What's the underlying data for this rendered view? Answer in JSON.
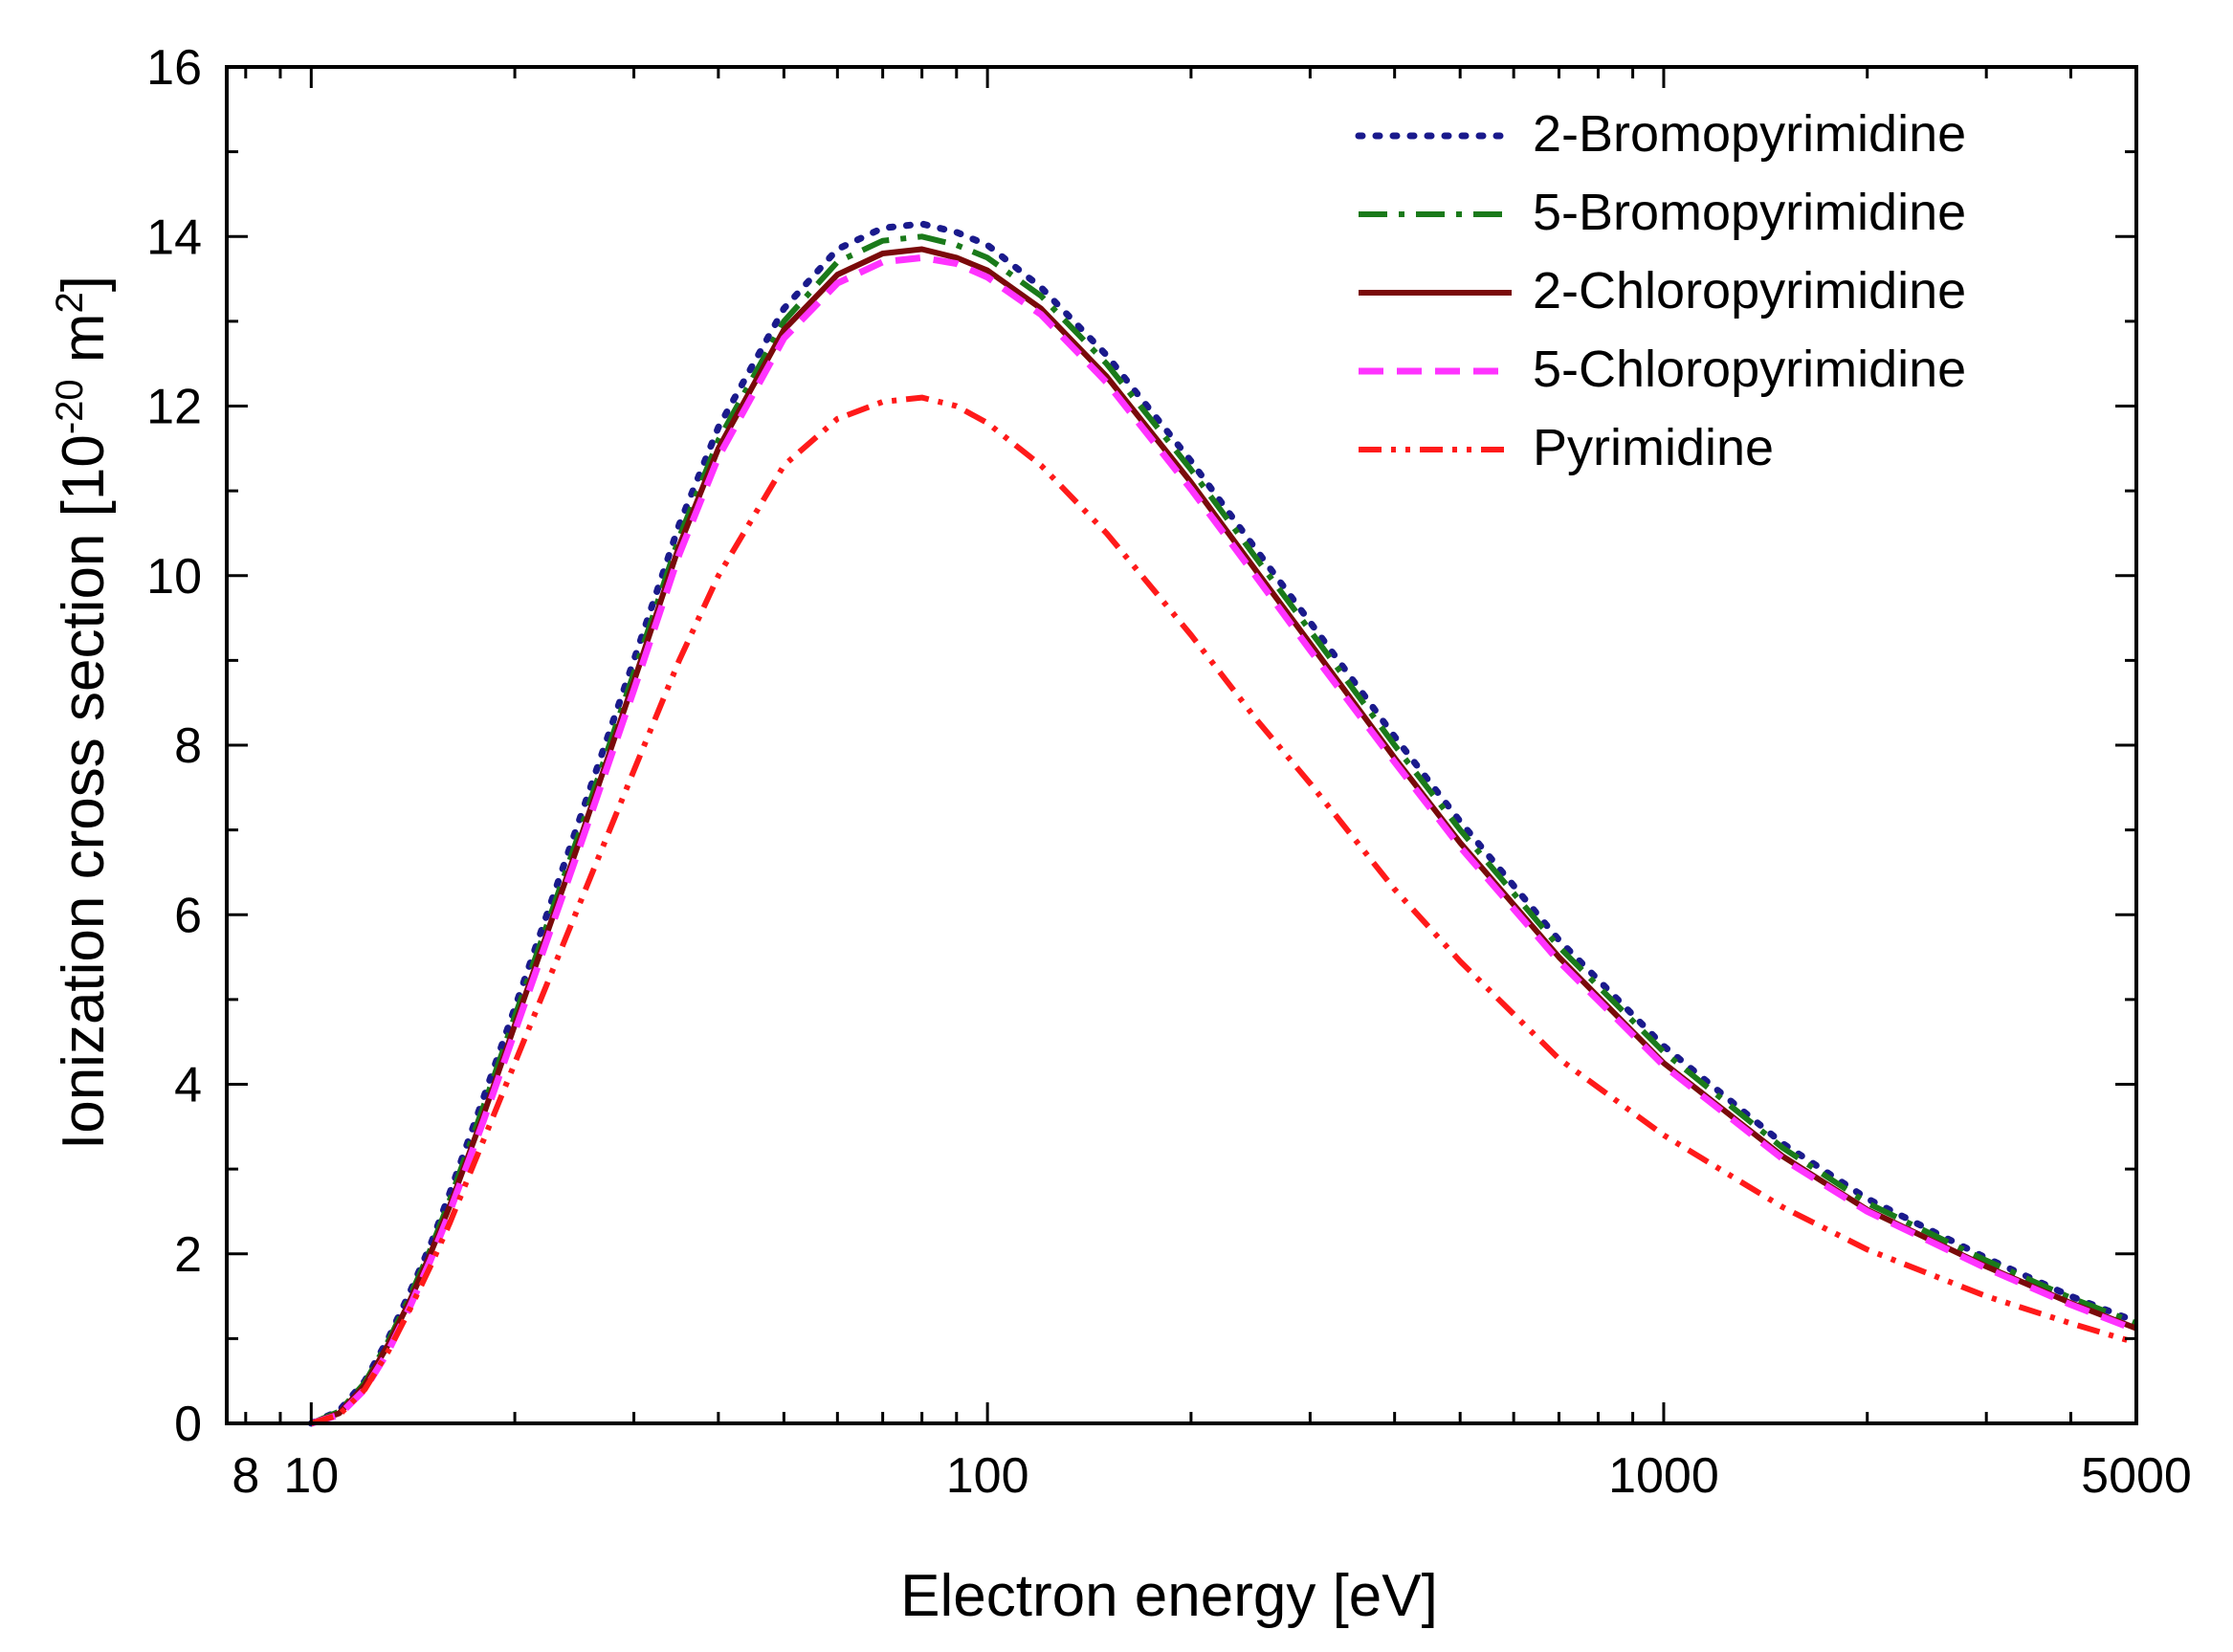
{
  "chart_data": {
    "type": "line",
    "xlabel": "Electron energy [eV]",
    "ylabel_main": "Ionization cross section [10",
    "ylabel_exp1": "-20",
    "ylabel_mid": " m",
    "ylabel_exp2": "2",
    "ylabel_end": "]",
    "x_scale": "log",
    "xlim": [
      7.5,
      5000
    ],
    "ylim": [
      0,
      16
    ],
    "x_tick_labels": [
      "8",
      "10",
      "100",
      "1000",
      "5000"
    ],
    "y_tick_labels": [
      "0",
      "2",
      "4",
      "6",
      "8",
      "10",
      "12",
      "14",
      "16"
    ],
    "grid": false,
    "legend_position": "top-right",
    "series": [
      {
        "name": "2-Bromopyrimidine",
        "color": "#1a1a8c",
        "style": "dotted",
        "x": [
          10,
          11,
          12,
          13,
          14,
          15,
          16,
          18,
          20,
          25,
          30,
          35,
          40,
          50,
          60,
          70,
          80,
          90,
          100,
          120,
          150,
          200,
          250,
          300,
          400,
          500,
          700,
          1000,
          1500,
          2000,
          3000,
          4000,
          5000
        ],
        "y": [
          0,
          0.15,
          0.5,
          1.0,
          1.55,
          2.1,
          2.7,
          3.85,
          4.9,
          7.15,
          9.0,
          10.6,
          11.75,
          13.15,
          13.85,
          14.1,
          14.15,
          14.05,
          13.9,
          13.4,
          12.6,
          11.35,
          10.3,
          9.45,
          8.1,
          7.1,
          5.7,
          4.45,
          3.3,
          2.65,
          1.95,
          1.5,
          1.2
        ]
      },
      {
        "name": "5-Bromopyrimidine",
        "color": "#1a7a1a",
        "style": "dashdot",
        "x": [
          10,
          11,
          12,
          13,
          14,
          15,
          16,
          18,
          20,
          25,
          30,
          35,
          40,
          50,
          60,
          70,
          80,
          90,
          100,
          120,
          150,
          200,
          250,
          300,
          400,
          500,
          700,
          1000,
          1500,
          2000,
          3000,
          4000,
          5000
        ],
        "y": [
          0,
          0.14,
          0.48,
          0.97,
          1.5,
          2.05,
          2.62,
          3.75,
          4.8,
          7.0,
          8.85,
          10.45,
          11.6,
          13.0,
          13.7,
          13.95,
          14.0,
          13.9,
          13.75,
          13.3,
          12.5,
          11.25,
          10.2,
          9.35,
          8.0,
          7.0,
          5.62,
          4.38,
          3.25,
          2.6,
          1.92,
          1.48,
          1.18
        ]
      },
      {
        "name": "2-Chloropyrimidine",
        "color": "#7a0a0a",
        "style": "solid",
        "x": [
          10,
          11,
          12,
          13,
          14,
          15,
          16,
          18,
          20,
          25,
          30,
          35,
          40,
          50,
          60,
          70,
          80,
          90,
          100,
          120,
          150,
          200,
          250,
          300,
          400,
          500,
          700,
          1000,
          1500,
          2000,
          3000,
          4000,
          5000
        ],
        "y": [
          0,
          0.12,
          0.45,
          0.93,
          1.45,
          2.0,
          2.55,
          3.65,
          4.7,
          6.9,
          8.75,
          10.35,
          11.5,
          12.9,
          13.55,
          13.8,
          13.85,
          13.75,
          13.6,
          13.15,
          12.35,
          11.1,
          10.05,
          9.2,
          7.85,
          6.85,
          5.5,
          4.25,
          3.15,
          2.52,
          1.85,
          1.42,
          1.12
        ]
      },
      {
        "name": "5-Chloropyrimidine",
        "color": "#ff33ff",
        "style": "dashed",
        "x": [
          10,
          11,
          12,
          13,
          14,
          15,
          16,
          18,
          20,
          25,
          30,
          35,
          40,
          50,
          60,
          70,
          80,
          90,
          100,
          120,
          150,
          200,
          250,
          300,
          400,
          500,
          700,
          1000,
          1500,
          2000,
          3000,
          4000,
          5000
        ],
        "y": [
          0,
          0.1,
          0.4,
          0.85,
          1.38,
          1.92,
          2.48,
          3.58,
          4.62,
          6.82,
          8.65,
          10.25,
          11.4,
          12.8,
          13.45,
          13.7,
          13.75,
          13.68,
          13.52,
          13.08,
          12.28,
          11.02,
          9.98,
          9.12,
          7.8,
          6.8,
          5.45,
          4.22,
          3.12,
          2.5,
          1.83,
          1.4,
          1.1
        ]
      },
      {
        "name": "Pyrimidine",
        "color": "#ff1a1a",
        "style": "dashdotdot",
        "x": [
          10,
          11,
          12,
          13,
          14,
          15,
          16,
          18,
          20,
          25,
          30,
          35,
          40,
          50,
          60,
          70,
          80,
          90,
          100,
          120,
          150,
          200,
          250,
          300,
          400,
          500,
          700,
          1000,
          1500,
          2000,
          3000,
          4000,
          5000
        ],
        "y": [
          0,
          0.1,
          0.4,
          0.85,
          1.35,
          1.85,
          2.35,
          3.35,
          4.25,
          6.15,
          7.7,
          9.0,
          10.0,
          11.3,
          11.85,
          12.05,
          12.1,
          12.0,
          11.8,
          11.3,
          10.5,
          9.3,
          8.3,
          7.55,
          6.3,
          5.45,
          4.3,
          3.4,
          2.55,
          2.05,
          1.5,
          1.18,
          0.95
        ]
      }
    ]
  }
}
